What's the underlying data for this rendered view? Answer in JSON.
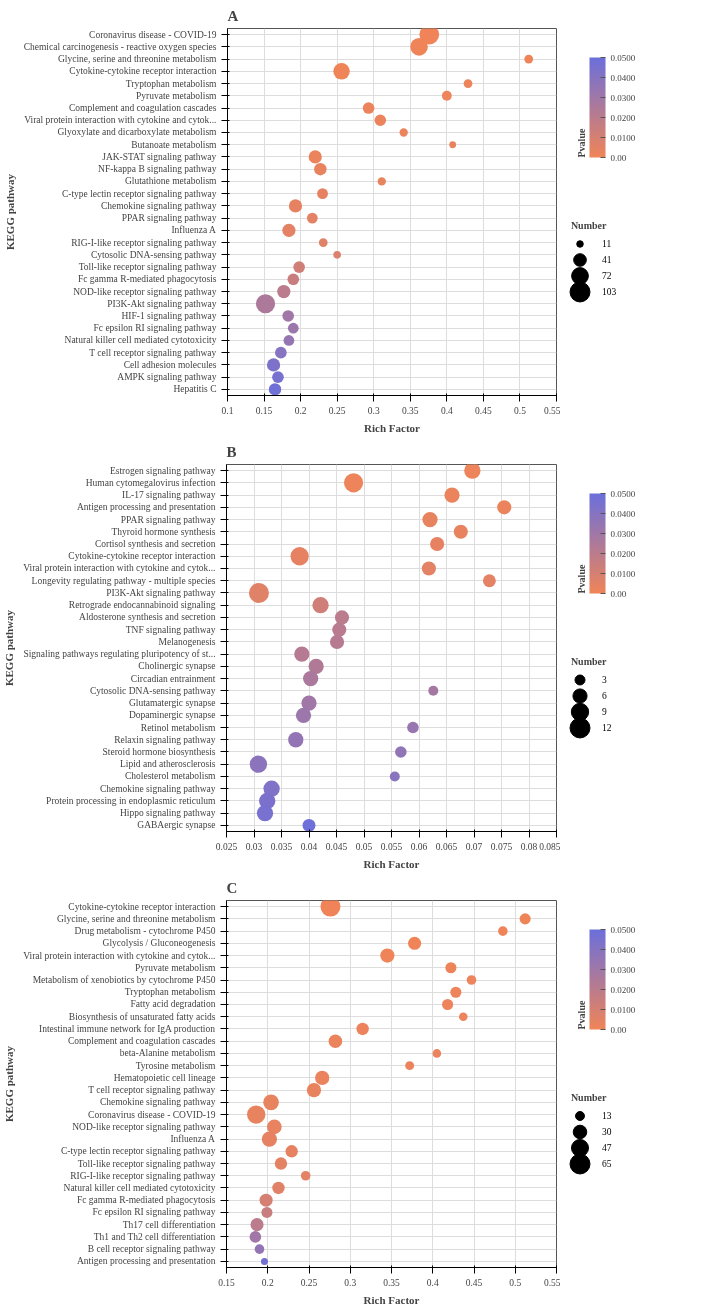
{
  "chart_data": [
    {
      "type": "bubble",
      "orientation": "horizontal",
      "title": "A",
      "xlabel": "Rich Factor",
      "ylabel": "KEGG pathway",
      "clabel": "Pvalue",
      "legend_title": "Number",
      "grid": true,
      "categories": [
        "Coronavirus disease - COVID-19",
        "Chemical carcinogenesis - reactive oxygen species",
        "Glycine, serine and threonine metabolism",
        "Cytokine-cytokine receptor interaction",
        "Tryptophan metabolism",
        "Pyruvate metabolism",
        "Complement and coagulation cascades",
        "Viral protein interaction with cytokine and cytok...",
        "Glyoxylate and dicarboxylate metabolism",
        "Butanoate metabolism",
        "JAK-STAT signaling pathway",
        "NF-kappa B signaling pathway",
        "Glutathione metabolism",
        "C-type lectin receptor signaling pathway",
        "Chemokine signaling pathway",
        "PPAR signaling pathway",
        "Influenza A",
        "RIG-I-like receptor signaling pathway",
        "Cytosolic DNA-sensing pathway",
        "Toll-like receptor signaling pathway",
        "Fc gamma R-mediated phagocytosis",
        "NOD-like receptor signaling pathway",
        "PI3K-Akt signaling pathway",
        "HIF-1 signaling pathway",
        "Fc epsilon RI signaling pathway",
        "Natural killer cell mediated cytotoxicity",
        "T cell receptor signaling pathway",
        "Cell adhesion molecules",
        "AMPK signaling pathway",
        "Hepatitis C"
      ],
      "values": [
        0.376,
        0.362,
        0.512,
        0.256,
        0.429,
        0.4,
        0.293,
        0.309,
        0.341,
        0.408,
        0.22,
        0.227,
        0.311,
        0.23,
        0.193,
        0.216,
        0.184,
        0.231,
        0.25,
        0.198,
        0.19,
        0.177,
        0.152,
        0.183,
        0.19,
        0.184,
        0.173,
        0.163,
        0.169,
        0.165
      ],
      "sizes": [
        100,
        80,
        20,
        70,
        20,
        25,
        35,
        35,
        18,
        12,
        45,
        40,
        18,
        30,
        45,
        30,
        45,
        20,
        15,
        35,
        35,
        45,
        95,
        35,
        30,
        30,
        35,
        45,
        35,
        40
      ],
      "cvalues": [
        0.0001,
        0.0002,
        0.0005,
        0.0005,
        0.001,
        0.001,
        0.0015,
        0.002,
        0.002,
        0.003,
        0.002,
        0.003,
        0.003,
        0.004,
        0.004,
        0.005,
        0.005,
        0.006,
        0.008,
        0.012,
        0.015,
        0.02,
        0.025,
        0.03,
        0.032,
        0.034,
        0.04,
        0.043,
        0.045,
        0.048
      ],
      "xlim": [
        0.1,
        0.55
      ],
      "xticks": [
        0.1,
        0.15,
        0.2,
        0.25,
        0.3,
        0.35,
        0.4,
        0.45,
        0.5,
        0.55
      ],
      "clim": [
        0,
        0.05
      ],
      "cticks": [
        {
          "value": 0.05,
          "label": "0.0500"
        },
        {
          "value": 0.04,
          "label": "0.0400"
        },
        {
          "value": 0.03,
          "label": "0.0300"
        },
        {
          "value": 0.02,
          "label": "0.0200"
        },
        {
          "value": 0.01,
          "label": "0.0100"
        },
        {
          "value": 0,
          "label": "0.00"
        }
      ],
      "size_legend": [
        11,
        41,
        72,
        103
      ]
    },
    {
      "type": "bubble",
      "orientation": "horizontal",
      "title": "B",
      "xlabel": "Rich Factor",
      "ylabel": "KEGG pathway",
      "clabel": "Pvalue",
      "legend_title": "Number",
      "grid": true,
      "categories": [
        "Estrogen signaling pathway",
        "Human cytomegalovirus infection",
        "IL-17 signaling pathway",
        "Antigen processing and presentation",
        "PPAR signaling pathway",
        "Thyroid hormone synthesis",
        "Cortisol synthesis and secretion",
        "Cytokine-cytokine receptor interaction",
        "Viral protein interaction with cytokine and cytok...",
        "Longevity regulating pathway - multiple species",
        "PI3K-Akt signaling pathway",
        "Retrograde endocannabinoid signaling",
        "Aldosterone synthesis and secretion",
        "TNF signaling pathway",
        "Melanogenesis",
        "Signaling pathways regulating pluripotency of st...",
        "Cholinergic synapse",
        "Circadian entrainment",
        "Cytosolic DNA-sensing pathway",
        "Glutamatergic synapse",
        "Dopaminergic synapse",
        "Retinol metabolism",
        "Relaxin signaling pathway",
        "Steroid hormone biosynthesis",
        "Lipid and atherosclerosis",
        "Cholesterol metabolism",
        "Chemokine signaling pathway",
        "Protein processing in endoplasmic reticulum",
        "Hippo signaling pathway",
        "GABAergic synapse"
      ],
      "values": [
        0.0697,
        0.0481,
        0.066,
        0.0755,
        0.062,
        0.0676,
        0.0633,
        0.0383,
        0.0618,
        0.0728,
        0.0309,
        0.0421,
        0.046,
        0.0455,
        0.0451,
        0.0387,
        0.0413,
        0.0403,
        0.0626,
        0.04,
        0.039,
        0.0589,
        0.0376,
        0.0567,
        0.0308,
        0.0556,
        0.0332,
        0.0324,
        0.032,
        0.04
      ],
      "sizes": [
        8,
        11,
        7,
        6,
        7,
        6,
        6,
        10,
        6,
        5,
        12,
        8,
        6,
        6,
        6,
        7,
        7,
        7,
        3,
        7,
        7,
        4,
        7,
        4,
        9,
        3,
        8,
        8,
        8,
        5
      ],
      "cvalues": [
        0.001,
        0.001,
        0.002,
        0.002,
        0.003,
        0.003,
        0.004,
        0.004,
        0.005,
        0.005,
        0.006,
        0.012,
        0.02,
        0.021,
        0.022,
        0.022,
        0.024,
        0.026,
        0.028,
        0.03,
        0.032,
        0.033,
        0.035,
        0.036,
        0.038,
        0.039,
        0.042,
        0.044,
        0.045,
        0.049
      ],
      "xlim": [
        0.025,
        0.085
      ],
      "xticks": [
        0.025,
        0.03,
        0.035,
        0.04,
        0.045,
        0.05,
        0.055,
        0.06,
        0.065,
        0.07,
        0.075,
        0.08,
        0.085
      ],
      "clim": [
        0,
        0.05
      ],
      "cticks": [
        {
          "value": 0.05,
          "label": "0.0500"
        },
        {
          "value": 0.04,
          "label": "0.0400"
        },
        {
          "value": 0.03,
          "label": "0.0300"
        },
        {
          "value": 0.02,
          "label": "0.0200"
        },
        {
          "value": 0.01,
          "label": "0.0100"
        },
        {
          "value": 0,
          "label": "0.00"
        }
      ],
      "size_legend": [
        3,
        6,
        9,
        12
      ]
    },
    {
      "type": "bubble",
      "orientation": "horizontal",
      "title": "C",
      "xlabel": "Rich Factor",
      "ylabel": "KEGG pathway",
      "clabel": "Pvalue",
      "legend_title": "Number",
      "grid": true,
      "categories": [
        "Cytokine-cytokine receptor interaction",
        "Glycine, serine and threonine metabolism",
        "Drug metabolism - cytochrome P450",
        "Glycolysis / Gluconeogenesis",
        "Viral protein interaction with cytokine and cytok...",
        "Pyruvate metabolism",
        "Metabolism of xenobiotics by cytochrome P450",
        "Tryptophan metabolism",
        "Fatty acid degradation",
        "Biosynthesis of unsaturated fatty acids",
        "Intestinal immune network for IgA production",
        "Complement and coagulation cascades",
        "beta-Alanine metabolism",
        "Tyrosine metabolism",
        "Hematopoietic cell lineage",
        "T cell receptor signaling pathway",
        "Chemokine signaling pathway",
        "Coronavirus disease - COVID-19",
        "NOD-like receptor signaling pathway",
        "Influenza A",
        "C-type lectin receptor signaling pathway",
        "Toll-like receptor signaling pathway",
        "RIG-I-like receptor signaling pathway",
        "Natural killer cell mediated cytotoxicity",
        "Fc gamma R-mediated phagocytosis",
        "Fc epsilon RI signaling pathway",
        "Th17 cell differentiation",
        "Th1 and Th2 cell differentiation",
        "B cell receptor signaling pathway",
        "Antigen processing and presentation"
      ],
      "values": [
        0.276,
        0.512,
        0.485,
        0.378,
        0.345,
        0.422,
        0.447,
        0.428,
        0.418,
        0.437,
        0.315,
        0.282,
        0.405,
        0.372,
        0.266,
        0.256,
        0.204,
        0.186,
        0.208,
        0.202,
        0.229,
        0.216,
        0.246,
        0.213,
        0.198,
        0.199,
        0.187,
        0.185,
        0.19,
        0.196
      ],
      "sizes": [
        65,
        20,
        15,
        28,
        33,
        20,
        15,
        20,
        20,
        12,
        25,
        30,
        12,
        13,
        33,
        33,
        40,
        55,
        35,
        38,
        25,
        25,
        15,
        25,
        28,
        20,
        28,
        22,
        15,
        8
      ],
      "cvalues": [
        0.0001,
        0.0002,
        0.0003,
        0.0005,
        0.0005,
        0.0008,
        0.001,
        0.001,
        0.001,
        0.0015,
        0.0015,
        0.002,
        0.002,
        0.002,
        0.0025,
        0.003,
        0.003,
        0.003,
        0.0035,
        0.004,
        0.004,
        0.0045,
        0.005,
        0.006,
        0.01,
        0.015,
        0.02,
        0.03,
        0.035,
        0.047
      ],
      "xlim": [
        0.15,
        0.55
      ],
      "xticks": [
        0.15,
        0.2,
        0.25,
        0.3,
        0.35,
        0.4,
        0.45,
        0.5,
        0.55
      ],
      "clim": [
        0,
        0.05
      ],
      "cticks": [
        {
          "value": 0.05,
          "label": "0.0500"
        },
        {
          "value": 0.04,
          "label": "0.0400"
        },
        {
          "value": 0.03,
          "label": "0.0300"
        },
        {
          "value": 0.02,
          "label": "0.0200"
        },
        {
          "value": 0.01,
          "label": "0.0100"
        },
        {
          "value": 0,
          "label": "0.00"
        }
      ],
      "size_legend": [
        13,
        30,
        47,
        65
      ]
    }
  ]
}
